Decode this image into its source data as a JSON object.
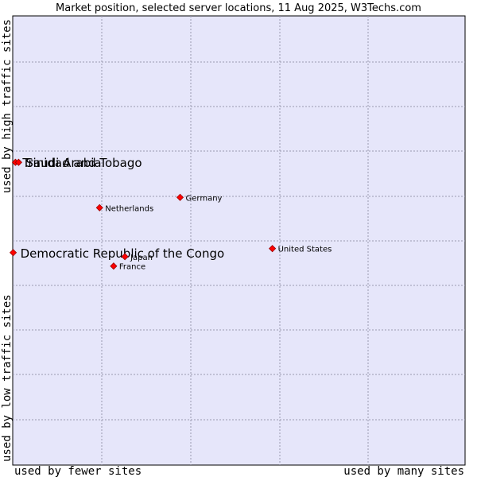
{
  "chart_data": {
    "type": "scatter",
    "title": "Market position, selected server locations, 11 Aug 2025, W3Techs.com",
    "xlabel_low": "used by fewer sites",
    "xlabel_high": "used by many sites",
    "ylabel_low": "used by low traffic sites",
    "ylabel_high": "used by high traffic sites",
    "xlim": [
      0,
      100
    ],
    "ylim": [
      0,
      100
    ],
    "grid": true,
    "colors": {
      "plot_background": "#e6e6fa",
      "grid": "#9a9ab0",
      "marker": "#ff0000",
      "marker_edge": "#990000"
    },
    "points": [
      {
        "name": "Trinidad and Tobago",
        "x": 0.6,
        "y": 67.4,
        "label_size": "large"
      },
      {
        "name": "Saudi Arabia",
        "x": 1.3,
        "y": 67.4,
        "label_size": "large"
      },
      {
        "name": "Democratic Republic of the Congo",
        "x": 0.1,
        "y": 47.3,
        "label_size": "large"
      },
      {
        "name": "Germany",
        "x": 37.0,
        "y": 59.6,
        "label_size": "small"
      },
      {
        "name": "Netherlands",
        "x": 19.2,
        "y": 57.3,
        "label_size": "small"
      },
      {
        "name": "United States",
        "x": 57.4,
        "y": 48.2,
        "label_size": "small"
      },
      {
        "name": "Japan",
        "x": 24.8,
        "y": 46.4,
        "label_size": "small"
      },
      {
        "name": "France",
        "x": 22.3,
        "y": 44.3,
        "label_size": "small"
      }
    ]
  }
}
